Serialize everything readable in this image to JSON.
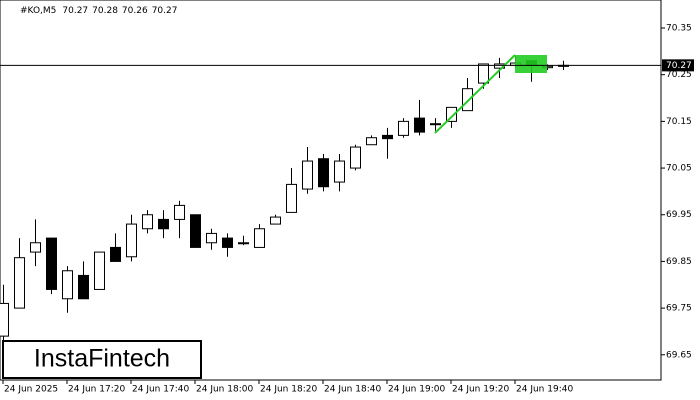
{
  "chart_data": {
    "type": "candlestick",
    "title": "#KO,M5",
    "categories": [
      "24 Jun 2025",
      null,
      null,
      null,
      "24 Jun 17:20",
      null,
      null,
      null,
      "24 Jun 17:40",
      null,
      null,
      null,
      "24 Jun 18:00",
      null,
      null,
      null,
      "24 Jun 18:20",
      null,
      null,
      null,
      "24 Jun 18:40",
      null,
      null,
      null,
      "24 Jun 19:00",
      null,
      null,
      null,
      "24 Jun 19:20",
      null,
      null,
      null,
      "24 Jun 19:40",
      null,
      null,
      null
    ],
    "open": [
      69.69,
      69.75,
      69.87,
      69.9,
      69.77,
      69.82,
      69.79,
      69.88,
      69.86,
      69.92,
      69.94,
      69.94,
      69.95,
      69.89,
      69.9,
      69.89,
      69.88,
      69.93,
      69.955,
      70.005,
      70.07,
      70.02,
      70.05,
      70.1,
      70.12,
      70.12,
      70.157,
      70.145,
      70.15,
      70.173,
      70.232,
      70.264,
      70.27,
      70.28,
      70.265,
      70.27
    ],
    "high": [
      69.8,
      69.9,
      69.94,
      69.9,
      69.84,
      69.85,
      69.87,
      69.91,
      69.95,
      69.96,
      69.96,
      69.98,
      69.95,
      69.92,
      69.91,
      69.905,
      69.93,
      69.95,
      70.05,
      70.095,
      70.08,
      70.08,
      70.1,
      70.12,
      70.136,
      70.157,
      70.196,
      70.157,
      70.18,
      70.243,
      70.273,
      70.286,
      70.29,
      70.28,
      70.272,
      70.28
    ],
    "low": [
      69.67,
      69.75,
      69.84,
      69.78,
      69.74,
      69.77,
      69.79,
      69.85,
      69.85,
      69.91,
      69.9,
      69.9,
      69.88,
      69.875,
      69.86,
      69.885,
      69.88,
      69.93,
      69.955,
      69.995,
      70.0,
      70.0,
      70.045,
      70.1,
      70.07,
      70.115,
      70.12,
      70.13,
      70.136,
      70.173,
      70.22,
      70.243,
      70.265,
      70.235,
      70.26,
      70.26
    ],
    "close": [
      69.76,
      69.858,
      69.89,
      69.79,
      69.83,
      69.77,
      69.87,
      69.85,
      69.93,
      69.95,
      69.92,
      69.97,
      69.88,
      69.91,
      69.88,
      69.89,
      69.92,
      69.945,
      70.015,
      70.065,
      70.01,
      70.065,
      70.095,
      70.115,
      70.113,
      70.15,
      70.127,
      70.145,
      70.18,
      70.22,
      70.273,
      70.273,
      70.275,
      70.27,
      70.268,
      70.27
    ],
    "up_color": "#ffffff",
    "down_color": "#000000",
    "ylim": [
      69.596,
      70.41
    ],
    "yticks": [
      69.65,
      69.75,
      69.85,
      69.95,
      70.05,
      70.15,
      70.25,
      70.35
    ],
    "brand": "InstaFintech"
  }
}
